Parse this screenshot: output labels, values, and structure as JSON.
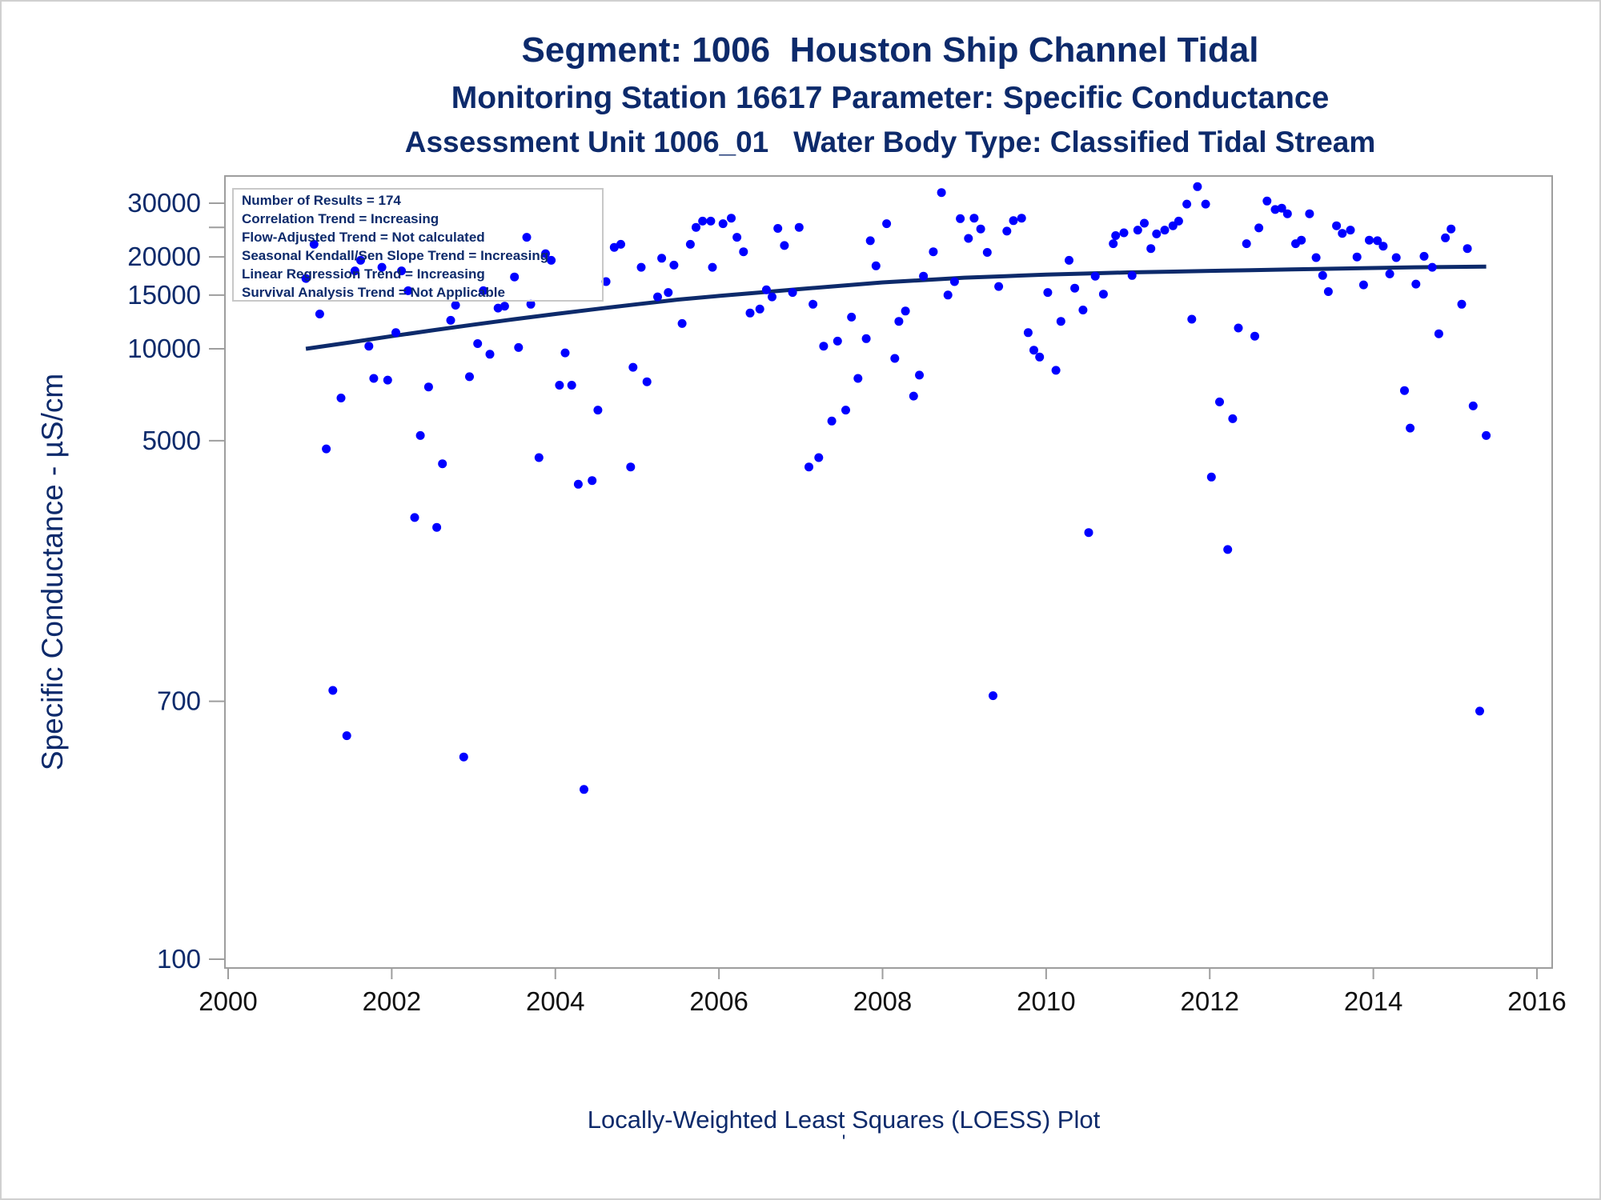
{
  "titles": {
    "line1": "Segment: 1006  Houston Ship Channel Tidal",
    "line2": "Monitoring Station 16617 Parameter: Specific Conductance",
    "line3": "Assessment Unit 1006_01   Water Body Type: Classified Tidal Stream"
  },
  "footnote": "Locally-Weighted Least Squares (LOESS) Plot",
  "footnote_mark": "'",
  "colors": {
    "text": "#0d2a6b",
    "points": "#0000ff",
    "loess": "#0d2a6b",
    "frame": "#9e9e9e"
  },
  "chart_data": {
    "type": "scatter",
    "ylabel": "Specific Conductance -  µS/cm",
    "xlabel": "",
    "x_range": [
      2000,
      2016
    ],
    "y_range": [
      100,
      35000
    ],
    "y_scale": "log",
    "x_ticks": [
      2000,
      2002,
      2004,
      2006,
      2008,
      2010,
      2012,
      2014,
      2016
    ],
    "y_ticks": [
      100,
      700,
      5000,
      10000,
      15000,
      20000,
      30000
    ],
    "grid": false,
    "legend_box": {
      "position": "top-left",
      "lines": [
        "Number of Results = 174",
        "Correlation Trend = Increasing",
        "Flow-Adjusted Trend = Not calculated",
        "Seasonal Kendall/Sen Slope Trend = Increasing",
        "Linear Regression Trend = Increasing",
        "Survival Analysis Trend = Not Applicable"
      ]
    },
    "series": [
      {
        "kind": "points",
        "points": [
          [
            2000.95,
            17000
          ],
          [
            2001.05,
            22000
          ],
          [
            2001.12,
            13000
          ],
          [
            2001.2,
            4700
          ],
          [
            2001.28,
            760
          ],
          [
            2001.38,
            6900
          ],
          [
            2001.45,
            540
          ],
          [
            2001.55,
            18000
          ],
          [
            2001.62,
            19500
          ],
          [
            2001.72,
            10200
          ],
          [
            2001.78,
            8000
          ],
          [
            2001.88,
            18500
          ],
          [
            2001.95,
            7900
          ],
          [
            2002.05,
            11300
          ],
          [
            2002.12,
            18000
          ],
          [
            2002.2,
            15500
          ],
          [
            2002.28,
            2800
          ],
          [
            2002.35,
            5200
          ],
          [
            2002.45,
            7500
          ],
          [
            2002.55,
            2600
          ],
          [
            2002.62,
            4200
          ],
          [
            2002.72,
            12400
          ],
          [
            2002.78,
            13900
          ],
          [
            2002.88,
            460
          ],
          [
            2002.95,
            8100
          ],
          [
            2003.05,
            10400
          ],
          [
            2003.12,
            15500
          ],
          [
            2003.2,
            9600
          ],
          [
            2003.3,
            13600
          ],
          [
            2003.38,
            13800
          ],
          [
            2003.5,
            17200
          ],
          [
            2003.55,
            10100
          ],
          [
            2003.65,
            23200
          ],
          [
            2003.7,
            14000
          ],
          [
            2003.8,
            4400
          ],
          [
            2003.88,
            20500
          ],
          [
            2003.95,
            19500
          ],
          [
            2004.05,
            7600
          ],
          [
            2004.12,
            9700
          ],
          [
            2004.2,
            7600
          ],
          [
            2004.28,
            3600
          ],
          [
            2004.35,
            360
          ],
          [
            2004.45,
            3700
          ],
          [
            2004.52,
            6300
          ],
          [
            2004.62,
            16600
          ],
          [
            2004.72,
            21500
          ],
          [
            2004.8,
            22000
          ],
          [
            2004.92,
            4100
          ],
          [
            2004.95,
            8700
          ],
          [
            2005.05,
            18500
          ],
          [
            2005.12,
            7800
          ],
          [
            2005.25,
            14800
          ],
          [
            2005.3,
            19800
          ],
          [
            2005.38,
            15300
          ],
          [
            2005.45,
            18800
          ],
          [
            2005.55,
            12100
          ],
          [
            2005.65,
            22000
          ],
          [
            2005.72,
            25000
          ],
          [
            2005.8,
            26200
          ],
          [
            2005.9,
            26200
          ],
          [
            2005.92,
            18500
          ],
          [
            2006.05,
            25700
          ],
          [
            2006.15,
            26800
          ],
          [
            2006.22,
            23200
          ],
          [
            2006.3,
            20800
          ],
          [
            2006.38,
            13100
          ],
          [
            2006.5,
            13500
          ],
          [
            2006.58,
            15600
          ],
          [
            2006.65,
            14800
          ],
          [
            2006.72,
            24800
          ],
          [
            2006.8,
            21800
          ],
          [
            2006.9,
            15300
          ],
          [
            2006.98,
            25000
          ],
          [
            2007.1,
            4100
          ],
          [
            2007.15,
            14000
          ],
          [
            2007.22,
            4400
          ],
          [
            2007.28,
            10200
          ],
          [
            2007.38,
            5800
          ],
          [
            2007.45,
            10600
          ],
          [
            2007.55,
            6300
          ],
          [
            2007.62,
            12700
          ],
          [
            2007.7,
            8000
          ],
          [
            2007.8,
            10800
          ],
          [
            2007.85,
            22600
          ],
          [
            2007.92,
            18700
          ],
          [
            2008.05,
            25700
          ],
          [
            2008.15,
            9300
          ],
          [
            2008.2,
            12300
          ],
          [
            2008.28,
            13300
          ],
          [
            2008.38,
            7000
          ],
          [
            2008.45,
            8200
          ],
          [
            2008.5,
            17300
          ],
          [
            2008.62,
            20800
          ],
          [
            2008.72,
            32500
          ],
          [
            2008.8,
            15000
          ],
          [
            2008.88,
            16600
          ],
          [
            2008.95,
            26700
          ],
          [
            2009.05,
            23000
          ],
          [
            2009.12,
            26800
          ],
          [
            2009.2,
            24700
          ],
          [
            2009.28,
            20700
          ],
          [
            2009.35,
            730
          ],
          [
            2009.42,
            16000
          ],
          [
            2009.52,
            24300
          ],
          [
            2009.6,
            26300
          ],
          [
            2009.7,
            26800
          ],
          [
            2009.78,
            11300
          ],
          [
            2009.85,
            9900
          ],
          [
            2009.92,
            9400
          ],
          [
            2010.02,
            15300
          ],
          [
            2010.12,
            8500
          ],
          [
            2010.18,
            12300
          ],
          [
            2010.28,
            19500
          ],
          [
            2010.35,
            15800
          ],
          [
            2010.45,
            13400
          ],
          [
            2010.52,
            2500
          ],
          [
            2010.6,
            17300
          ],
          [
            2010.7,
            15100
          ],
          [
            2010.82,
            22100
          ],
          [
            2010.85,
            23500
          ],
          [
            2010.95,
            24000
          ],
          [
            2011.05,
            17400
          ],
          [
            2011.12,
            24500
          ],
          [
            2011.2,
            25800
          ],
          [
            2011.28,
            21300
          ],
          [
            2011.35,
            23800
          ],
          [
            2011.45,
            24500
          ],
          [
            2011.55,
            25300
          ],
          [
            2011.62,
            26200
          ],
          [
            2011.72,
            29800
          ],
          [
            2011.78,
            12500
          ],
          [
            2011.85,
            34000
          ],
          [
            2011.95,
            29800
          ],
          [
            2012.02,
            3800
          ],
          [
            2012.12,
            6700
          ],
          [
            2012.22,
            2200
          ],
          [
            2012.28,
            5900
          ],
          [
            2012.35,
            11700
          ],
          [
            2012.45,
            22100
          ],
          [
            2012.55,
            11000
          ],
          [
            2012.6,
            24900
          ],
          [
            2012.7,
            30500
          ],
          [
            2012.8,
            28600
          ],
          [
            2012.88,
            28900
          ],
          [
            2012.95,
            27700
          ],
          [
            2013.05,
            22100
          ],
          [
            2013.12,
            22700
          ],
          [
            2013.22,
            27700
          ],
          [
            2013.3,
            19900
          ],
          [
            2013.38,
            17400
          ],
          [
            2013.45,
            15400
          ],
          [
            2013.55,
            25300
          ],
          [
            2013.62,
            23900
          ],
          [
            2013.72,
            24500
          ],
          [
            2013.8,
            20000
          ],
          [
            2013.88,
            16200
          ],
          [
            2013.95,
            22700
          ],
          [
            2014.05,
            22600
          ],
          [
            2014.12,
            21700
          ],
          [
            2014.2,
            17600
          ],
          [
            2014.28,
            19900
          ],
          [
            2014.38,
            7300
          ],
          [
            2014.45,
            5500
          ],
          [
            2014.52,
            16300
          ],
          [
            2014.62,
            20100
          ],
          [
            2014.72,
            18500
          ],
          [
            2014.8,
            11200
          ],
          [
            2014.88,
            23100
          ],
          [
            2014.95,
            24700
          ],
          [
            2015.08,
            14000
          ],
          [
            2015.15,
            21300
          ],
          [
            2015.22,
            6500
          ],
          [
            2015.3,
            650
          ],
          [
            2015.38,
            5200
          ]
        ]
      },
      {
        "kind": "loess",
        "points": [
          [
            2000.95,
            10000
          ],
          [
            2001.5,
            10500
          ],
          [
            2002.0,
            11000
          ],
          [
            2002.5,
            11500
          ],
          [
            2003.0,
            12000
          ],
          [
            2003.5,
            12500
          ],
          [
            2004.0,
            13000
          ],
          [
            2004.5,
            13500
          ],
          [
            2005.0,
            14000
          ],
          [
            2005.5,
            14500
          ],
          [
            2006.0,
            14900
          ],
          [
            2006.5,
            15300
          ],
          [
            2007.0,
            15700
          ],
          [
            2007.5,
            16100
          ],
          [
            2008.0,
            16500
          ],
          [
            2008.5,
            16800
          ],
          [
            2009.0,
            17100
          ],
          [
            2009.5,
            17300
          ],
          [
            2010.0,
            17500
          ],
          [
            2010.5,
            17650
          ],
          [
            2011.0,
            17800
          ],
          [
            2011.5,
            17900
          ],
          [
            2012.0,
            18000
          ],
          [
            2012.5,
            18100
          ],
          [
            2013.0,
            18200
          ],
          [
            2013.5,
            18300
          ],
          [
            2014.0,
            18400
          ],
          [
            2014.5,
            18500
          ],
          [
            2015.0,
            18550
          ],
          [
            2015.38,
            18600
          ]
        ]
      }
    ]
  }
}
